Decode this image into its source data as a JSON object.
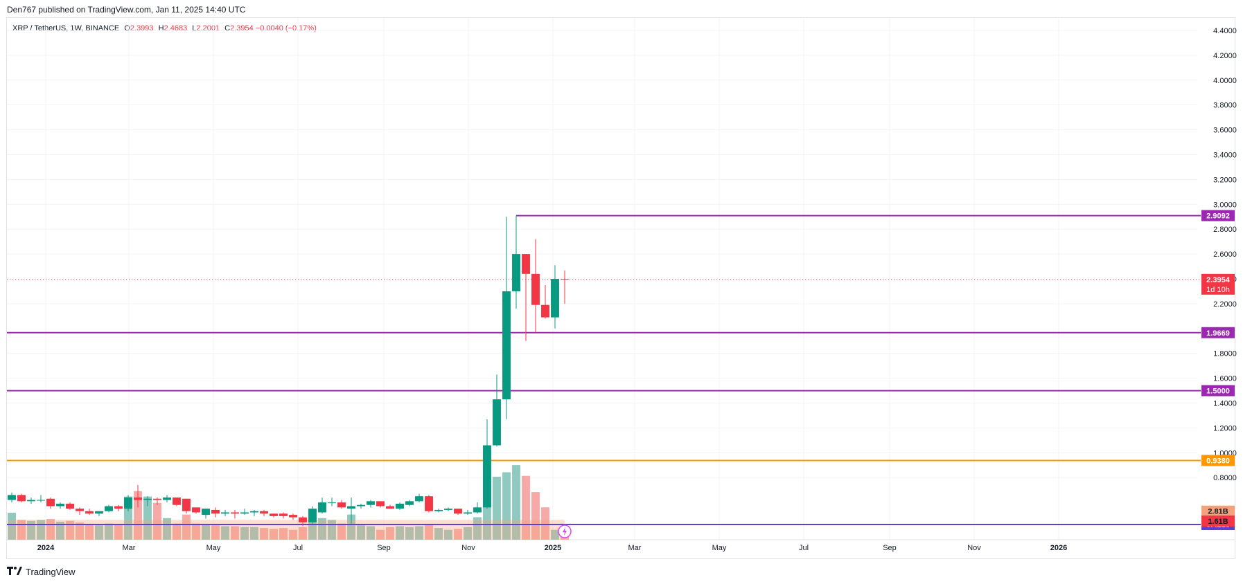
{
  "header": {
    "published": "Den767 published on TradingView.com, Jan 11, 2025 14:40 UTC"
  },
  "legend": {
    "symbol": "XRP / TetherUS, 1W, BINANCE",
    "o_label": "O",
    "o_value": "2.3993",
    "h_label": "H",
    "h_value": "2.4683",
    "l_label": "L",
    "l_value": "2.2001",
    "c_label": "C",
    "c_value": "2.3954",
    "change": "−0.0040 (−0.17%)"
  },
  "footer": {
    "brand": "TradingView",
    "logo_icon": "tradingview-logo-icon"
  },
  "colors": {
    "up": "#089981",
    "down": "#f23645",
    "vol_up": "#8ecac0",
    "vol_down": "#f7a9a7",
    "level": "#9c27b0",
    "orange": "#ff9800",
    "grid": "#f0f3fa"
  },
  "chart_data": {
    "type": "candlestick",
    "y_axis": {
      "min": 0.3,
      "max": 4.5,
      "ticks": [
        "0.8000",
        "1.0000",
        "1.2000",
        "1.4000",
        "1.6000",
        "1.8000",
        "2.2000",
        "2.4000",
        "2.6000",
        "2.8000",
        "3.0000",
        "3.2000",
        "3.4000",
        "3.6000",
        "3.8000",
        "4.0000",
        "4.2000",
        "4.4000"
      ]
    },
    "x_axis": {
      "start": "2023-12-04",
      "end": "2026-04-06",
      "ticks": [
        {
          "date": "2024-01-01",
          "label": "2024",
          "bold": true
        },
        {
          "date": "2024-03-01",
          "label": "Mar"
        },
        {
          "date": "2024-05-01",
          "label": "May"
        },
        {
          "date": "2024-07-01",
          "label": "Jul"
        },
        {
          "date": "2024-09-01",
          "label": "Sep"
        },
        {
          "date": "2024-11-01",
          "label": "Nov"
        },
        {
          "date": "2025-01-01",
          "label": "2025",
          "bold": true
        },
        {
          "date": "2025-03-01",
          "label": "Mar"
        },
        {
          "date": "2025-05-01",
          "label": "May"
        },
        {
          "date": "2025-07-01",
          "label": "Jul"
        },
        {
          "date": "2025-09-01",
          "label": "Sep"
        },
        {
          "date": "2025-11-01",
          "label": "Nov"
        },
        {
          "date": "2026-01-01",
          "label": "2026",
          "bold": true
        }
      ]
    },
    "candles": [
      {
        "date": "2023-12-04",
        "o": 0.62,
        "h": 0.68,
        "l": 0.6,
        "c": 0.66
      },
      {
        "date": "2023-12-11",
        "o": 0.66,
        "h": 0.67,
        "l": 0.6,
        "c": 0.61
      },
      {
        "date": "2023-12-18",
        "o": 0.61,
        "h": 0.64,
        "l": 0.59,
        "c": 0.62
      },
      {
        "date": "2023-12-25",
        "o": 0.62,
        "h": 0.66,
        "l": 0.6,
        "c": 0.62
      },
      {
        "date": "2024-01-01",
        "o": 0.63,
        "h": 0.64,
        "l": 0.55,
        "c": 0.57
      },
      {
        "date": "2024-01-08",
        "o": 0.57,
        "h": 0.6,
        "l": 0.55,
        "c": 0.59
      },
      {
        "date": "2024-01-15",
        "o": 0.59,
        "h": 0.6,
        "l": 0.54,
        "c": 0.55
      },
      {
        "date": "2024-01-22",
        "o": 0.55,
        "h": 0.56,
        "l": 0.5,
        "c": 0.53
      },
      {
        "date": "2024-01-29",
        "o": 0.53,
        "h": 0.55,
        "l": 0.5,
        "c": 0.51
      },
      {
        "date": "2024-02-05",
        "o": 0.51,
        "h": 0.53,
        "l": 0.49,
        "c": 0.53
      },
      {
        "date": "2024-02-12",
        "o": 0.53,
        "h": 0.58,
        "l": 0.52,
        "c": 0.57
      },
      {
        "date": "2024-02-19",
        "o": 0.57,
        "h": 0.58,
        "l": 0.53,
        "c": 0.55
      },
      {
        "date": "2024-02-26",
        "o": 0.55,
        "h": 0.66,
        "l": 0.53,
        "c": 0.64
      },
      {
        "date": "2024-03-04",
        "o": 0.64,
        "h": 0.74,
        "l": 0.56,
        "c": 0.62
      },
      {
        "date": "2024-03-11",
        "o": 0.62,
        "h": 0.65,
        "l": 0.57,
        "c": 0.63
      },
      {
        "date": "2024-03-18",
        "o": 0.63,
        "h": 0.64,
        "l": 0.58,
        "c": 0.62
      },
      {
        "date": "2024-03-25",
        "o": 0.62,
        "h": 0.66,
        "l": 0.6,
        "c": 0.64
      },
      {
        "date": "2024-04-01",
        "o": 0.64,
        "h": 0.64,
        "l": 0.57,
        "c": 0.58
      },
      {
        "date": "2024-04-08",
        "o": 0.63,
        "h": 0.63,
        "l": 0.51,
        "c": 0.53
      },
      {
        "date": "2024-04-15",
        "o": 0.56,
        "h": 0.56,
        "l": 0.51,
        "c": 0.52
      },
      {
        "date": "2024-04-22",
        "o": 0.5,
        "h": 0.55,
        "l": 0.47,
        "c": 0.55
      },
      {
        "date": "2024-04-29",
        "o": 0.54,
        "h": 0.56,
        "l": 0.48,
        "c": 0.51
      },
      {
        "date": "2024-05-06",
        "o": 0.51,
        "h": 0.54,
        "l": 0.49,
        "c": 0.52
      },
      {
        "date": "2024-05-13",
        "o": 0.52,
        "h": 0.54,
        "l": 0.47,
        "c": 0.51
      },
      {
        "date": "2024-05-20",
        "o": 0.51,
        "h": 0.55,
        "l": 0.5,
        "c": 0.52
      },
      {
        "date": "2024-05-27",
        "o": 0.52,
        "h": 0.54,
        "l": 0.49,
        "c": 0.53
      },
      {
        "date": "2024-06-03",
        "o": 0.53,
        "h": 0.54,
        "l": 0.49,
        "c": 0.51
      },
      {
        "date": "2024-06-10",
        "o": 0.51,
        "h": 0.51,
        "l": 0.48,
        "c": 0.49
      },
      {
        "date": "2024-06-17",
        "o": 0.51,
        "h": 0.52,
        "l": 0.47,
        "c": 0.49
      },
      {
        "date": "2024-06-24",
        "o": 0.5,
        "h": 0.51,
        "l": 0.46,
        "c": 0.48
      },
      {
        "date": "2024-07-01",
        "o": 0.48,
        "h": 0.49,
        "l": 0.41,
        "c": 0.44
      },
      {
        "date": "2024-07-08",
        "o": 0.44,
        "h": 0.57,
        "l": 0.43,
        "c": 0.55
      },
      {
        "date": "2024-07-15",
        "o": 0.52,
        "h": 0.64,
        "l": 0.51,
        "c": 0.6
      },
      {
        "date": "2024-07-22",
        "o": 0.6,
        "h": 0.64,
        "l": 0.57,
        "c": 0.6
      },
      {
        "date": "2024-07-29",
        "o": 0.6,
        "h": 0.62,
        "l": 0.55,
        "c": 0.56
      },
      {
        "date": "2024-08-05",
        "o": 0.55,
        "h": 0.64,
        "l": 0.43,
        "c": 0.57
      },
      {
        "date": "2024-08-12",
        "o": 0.57,
        "h": 0.59,
        "l": 0.55,
        "c": 0.58
      },
      {
        "date": "2024-08-19",
        "o": 0.58,
        "h": 0.62,
        "l": 0.56,
        "c": 0.61
      },
      {
        "date": "2024-08-26",
        "o": 0.61,
        "h": 0.61,
        "l": 0.56,
        "c": 0.57
      },
      {
        "date": "2024-09-02",
        "o": 0.57,
        "h": 0.58,
        "l": 0.55,
        "c": 0.55
      },
      {
        "date": "2024-09-09",
        "o": 0.55,
        "h": 0.6,
        "l": 0.54,
        "c": 0.59
      },
      {
        "date": "2024-09-16",
        "o": 0.58,
        "h": 0.62,
        "l": 0.57,
        "c": 0.61
      },
      {
        "date": "2024-09-23",
        "o": 0.61,
        "h": 0.67,
        "l": 0.6,
        "c": 0.65
      },
      {
        "date": "2024-09-30",
        "o": 0.65,
        "h": 0.66,
        "l": 0.52,
        "c": 0.53
      },
      {
        "date": "2024-10-07",
        "o": 0.53,
        "h": 0.55,
        "l": 0.52,
        "c": 0.54
      },
      {
        "date": "2024-10-14",
        "o": 0.54,
        "h": 0.56,
        "l": 0.53,
        "c": 0.55
      },
      {
        "date": "2024-10-21",
        "o": 0.55,
        "h": 0.55,
        "l": 0.5,
        "c": 0.51
      },
      {
        "date": "2024-10-28",
        "o": 0.51,
        "h": 0.54,
        "l": 0.5,
        "c": 0.52
      },
      {
        "date": "2024-11-04",
        "o": 0.52,
        "h": 0.6,
        "l": 0.51,
        "c": 0.56
      },
      {
        "date": "2024-11-11",
        "o": 0.56,
        "h": 1.27,
        "l": 0.55,
        "c": 1.06
      },
      {
        "date": "2024-11-18",
        "o": 1.06,
        "h": 1.63,
        "l": 1.05,
        "c": 1.43
      },
      {
        "date": "2024-11-25",
        "o": 1.43,
        "h": 2.9,
        "l": 1.27,
        "c": 2.3
      },
      {
        "date": "2024-12-02",
        "o": 2.3,
        "h": 2.91,
        "l": 2.16,
        "c": 2.6
      },
      {
        "date": "2024-12-09",
        "o": 2.6,
        "h": 2.6,
        "l": 1.9,
        "c": 2.44
      },
      {
        "date": "2024-12-16",
        "o": 2.44,
        "h": 2.72,
        "l": 1.96,
        "c": 2.19
      },
      {
        "date": "2024-12-23",
        "o": 2.19,
        "h": 2.35,
        "l": 2.08,
        "c": 2.09
      },
      {
        "date": "2024-12-30",
        "o": 2.09,
        "h": 2.51,
        "l": 2.0,
        "c": 2.4
      },
      {
        "date": "2025-01-06",
        "o": 2.3993,
        "h": 2.4683,
        "l": 2.2001,
        "c": 2.3954
      }
    ],
    "volume_relative": [
      0.3,
      0.22,
      0.21,
      0.22,
      0.23,
      0.2,
      0.21,
      0.19,
      0.17,
      0.16,
      0.18,
      0.17,
      0.48,
      0.54,
      0.48,
      0.41,
      0.24,
      0.18,
      0.28,
      0.18,
      0.17,
      0.16,
      0.15,
      0.15,
      0.14,
      0.14,
      0.13,
      0.12,
      0.13,
      0.11,
      0.14,
      0.24,
      0.24,
      0.22,
      0.18,
      0.28,
      0.16,
      0.15,
      0.11,
      0.14,
      0.15,
      0.14,
      0.15,
      0.17,
      0.13,
      0.11,
      0.12,
      0.14,
      0.25,
      0.73,
      0.7,
      0.75,
      0.83,
      0.71,
      0.53,
      0.36,
      0.11,
      0.06
    ],
    "volume_ma_relative": 0.16,
    "levels": [
      {
        "value": 2.9092,
        "label": "2.9092",
        "color": "#9c27b0",
        "from": "2024-12-02"
      },
      {
        "value": 1.9669,
        "label": "1.9669",
        "color": "#9c27b0"
      },
      {
        "value": 1.5,
        "label": "1.5000",
        "color": "#9c27b0"
      },
      {
        "value": 0.938,
        "label": "0.9380",
        "color": "#ff9800"
      },
      {
        "value": 0.4226,
        "label": "0.4226",
        "color": "#5d3fd3"
      }
    ],
    "price_label": {
      "value": 2.3954,
      "label": "2.3954",
      "countdown": "1d 10h"
    },
    "volume_labels": [
      {
        "label": "2.81B",
        "color": "#f4a27b",
        "level": 0.53
      },
      {
        "label": "1.61B",
        "color": "#f23645",
        "level": 0.45
      }
    ]
  }
}
